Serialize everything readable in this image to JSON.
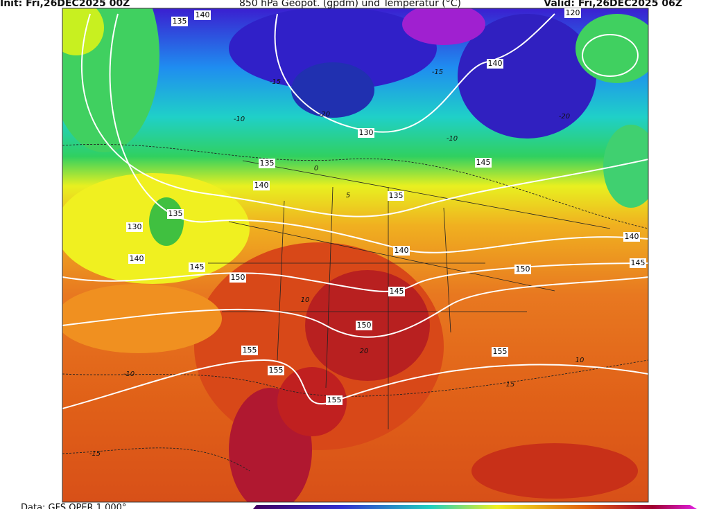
{
  "header": {
    "init": "Init: Fri,26DEC2025 00Z",
    "title": "850 hPa Geopot. (gpdm) und Temperatur (°C)",
    "valid": "Valid: Fri,26DEC2025 06Z"
  },
  "footer": {
    "data": "Data: GFS OPER 1.000°"
  },
  "geopotential_labels": [
    "140",
    "135",
    "130",
    "135",
    "140",
    "135",
    "145",
    "140",
    "120",
    "135",
    "130",
    "140",
    "145",
    "150",
    "140",
    "145",
    "150",
    "150",
    "140",
    "145",
    "155",
    "155",
    "155",
    "155"
  ],
  "temperature_labels": [
    "-15",
    "-20",
    "-15",
    "-10",
    "-20",
    "-10",
    "0",
    "5",
    "10",
    "20",
    "10",
    "-10",
    "15",
    "-15"
  ]
}
